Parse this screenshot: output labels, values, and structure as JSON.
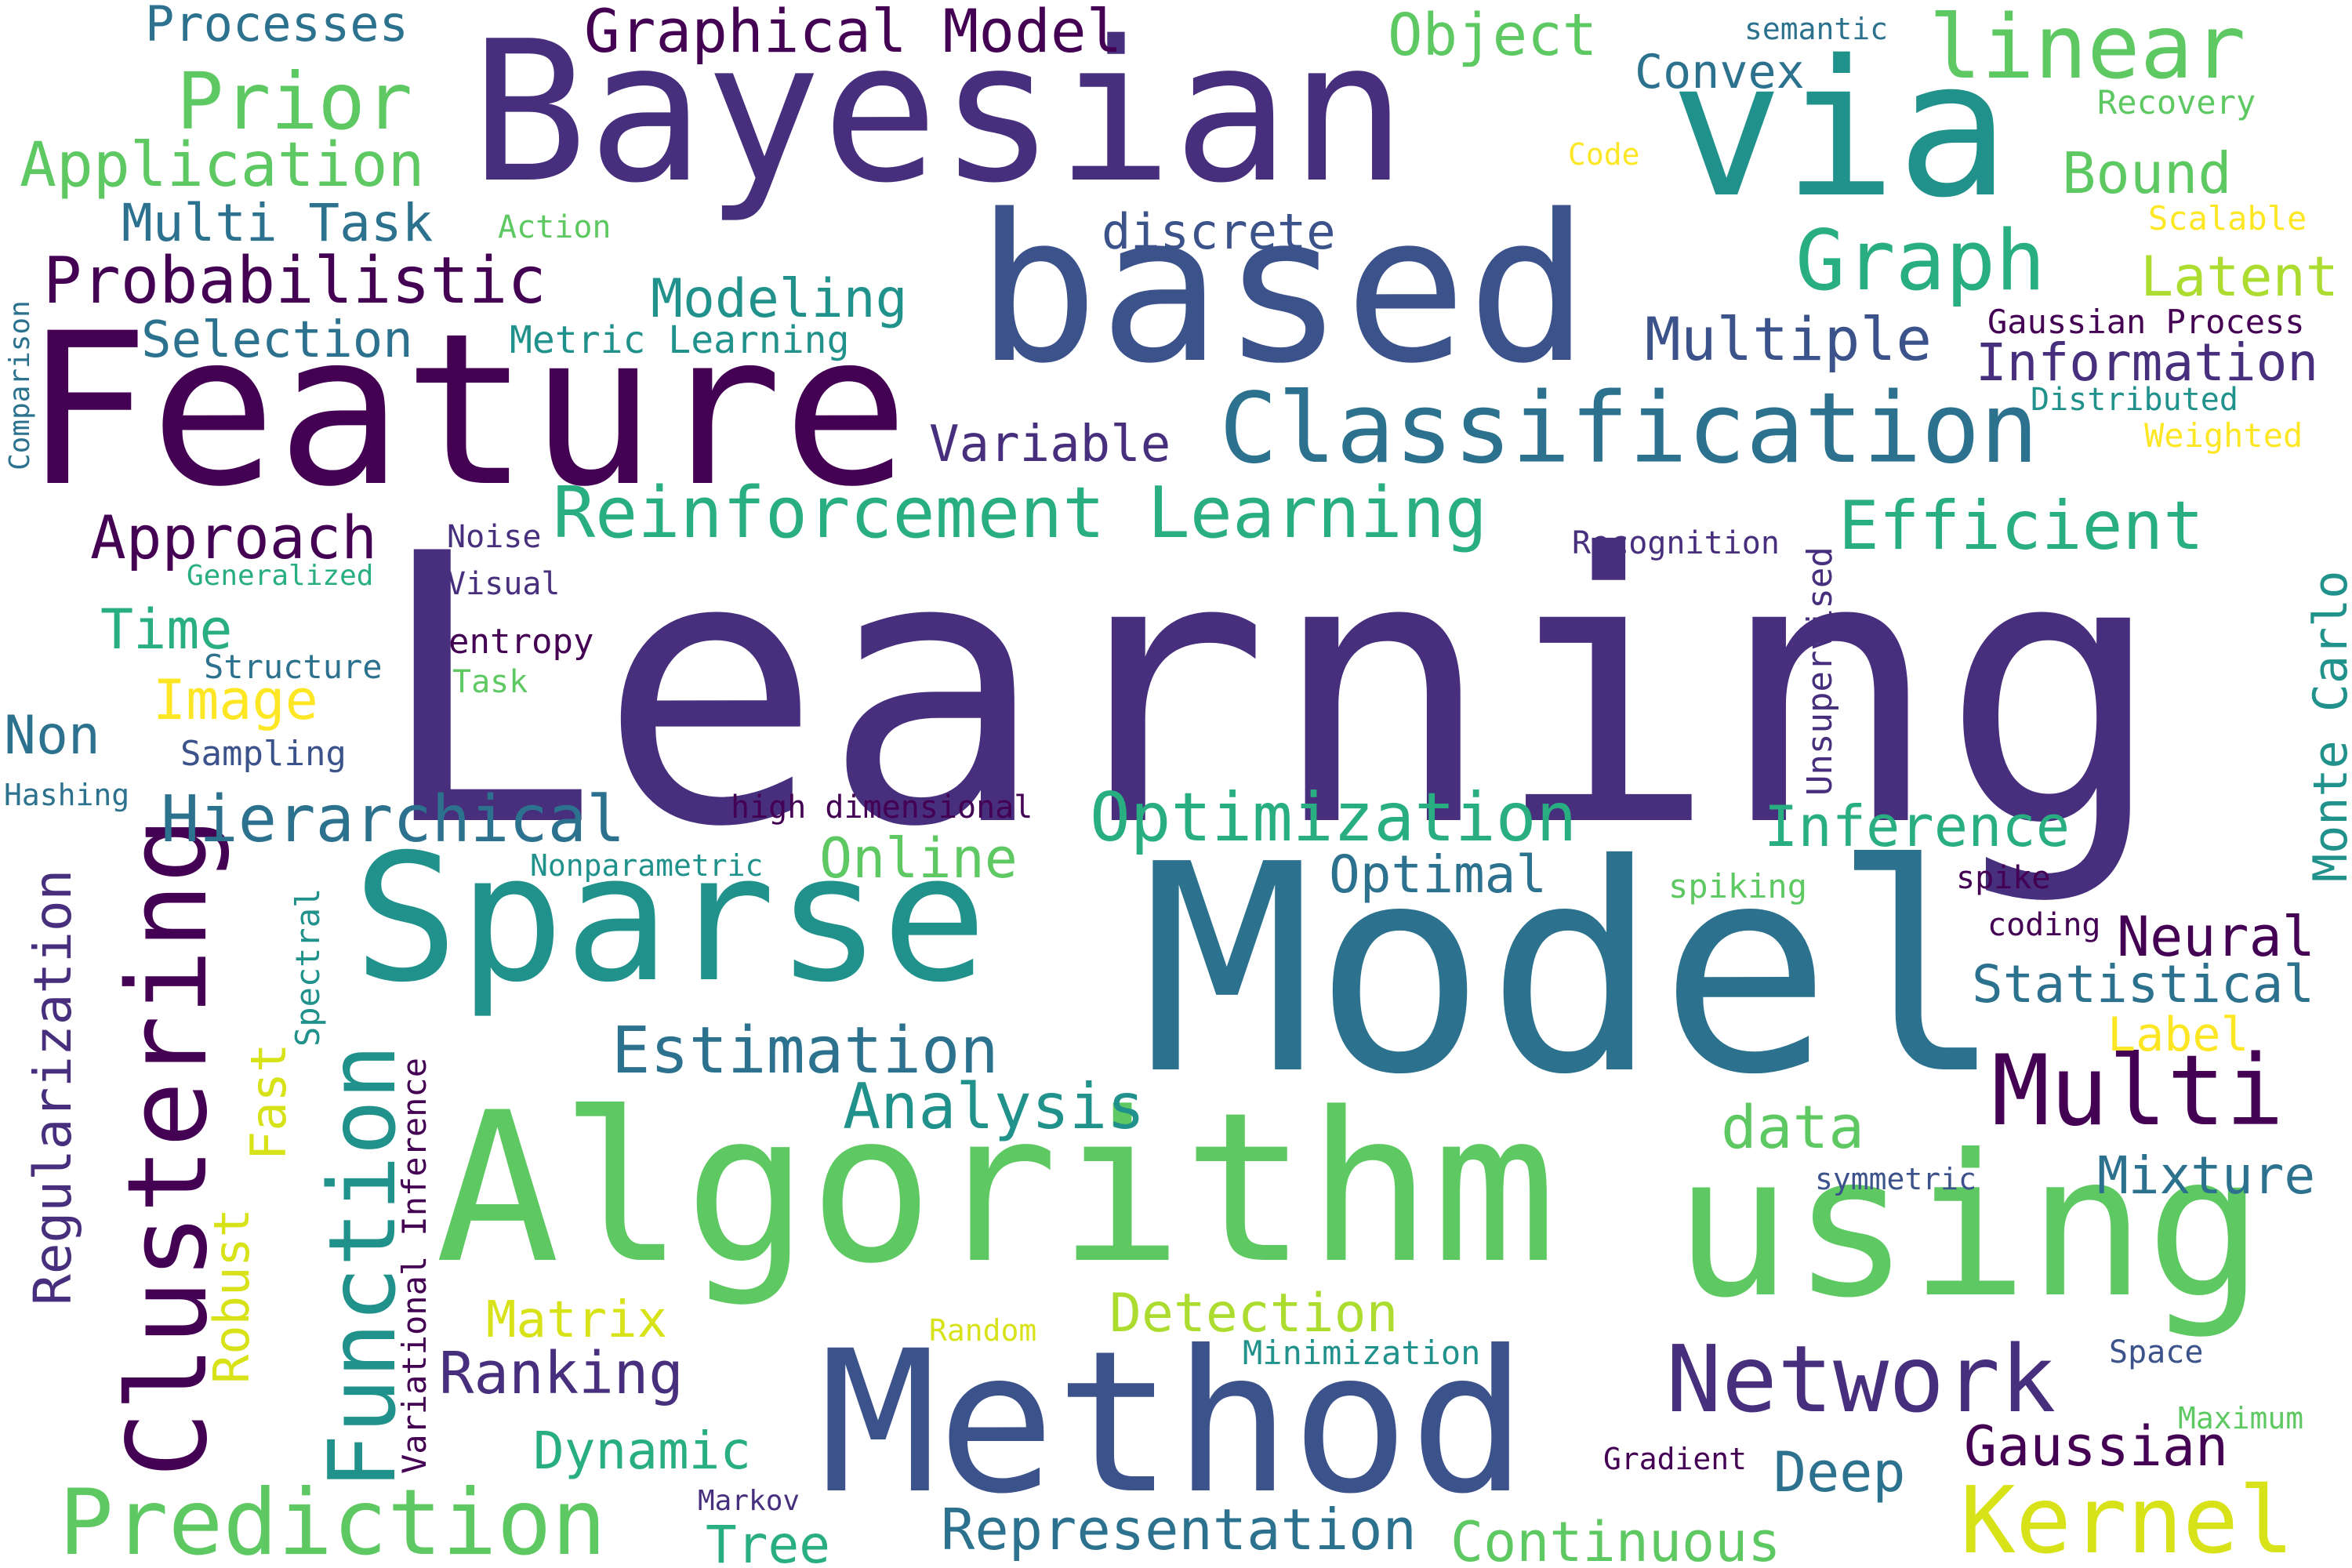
{
  "words": {
    "learning": "Learning",
    "model": "Model",
    "feature": "Feature",
    "bayesian": "Bayesian",
    "based": "based",
    "via": "via",
    "sparse": "Sparse",
    "algorithm": "Algorithm",
    "using": "using",
    "method": "Method",
    "classification": "Classification",
    "clustering": "Clustering",
    "multi": "Multi",
    "function": "Function",
    "network": "Network",
    "kernel": "Kernel",
    "prediction": "Prediction",
    "graph": "Graph",
    "optimization": "Optimization",
    "reinforcement_learning": "Reinforcement Learning",
    "estimation": "Estimation",
    "probabilistic": "Probabilistic",
    "hierarchical": "Hierarchical",
    "efficient": "Efficient",
    "analysis": "Analysis",
    "representation": "Representation",
    "continuous": "Continuous",
    "inference": "Inference",
    "gaussian": "Gaussian",
    "linear": "linear",
    "prior": "Prior",
    "application": "Application",
    "multiple": "Multiple",
    "information": "Information",
    "statistical": "Statistical",
    "monte_carlo": "Monte Carlo",
    "approach": "Approach",
    "data": "data",
    "mixture": "Mixture",
    "neural": "Neural",
    "graphical_model": "Graphical Model",
    "object": "Object",
    "modeling": "Modeling",
    "ranking": "Ranking",
    "regularization": "Regularization",
    "online": "Online",
    "detection": "Detection",
    "dynamic": "Dynamic",
    "tree": "Tree",
    "deep": "Deep",
    "bound": "Bound",
    "latent": "Latent",
    "optimal": "Optimal",
    "variable": "Variable",
    "processes": "Processes",
    "multi_task": "Multi Task",
    "selection": "Selection",
    "time": "Time",
    "non": "Non",
    "image": "Image",
    "convex": "Convex",
    "discrete": "discrete",
    "matrix": "Matrix",
    "label": "Label",
    "robust": "Robust",
    "fast": "Fast",
    "variational_inference": "Variational Inference",
    "spectral": "Spectral",
    "unsupervised": "Unsupervised",
    "metric_learning": "Metric Learning",
    "gaussian_process": "Gaussian Process",
    "distributed": "Distributed",
    "weighted": "Weighted",
    "scalable": "Scalable",
    "recovery": "Recovery",
    "semantic": "semantic",
    "code": "Code",
    "action": "Action",
    "comparison": "Comparison",
    "noise": "Noise",
    "visual": "Visual",
    "generalized": "Generalized",
    "entropy": "entropy",
    "structure": "Structure",
    "task": "Task",
    "sampling": "Sampling",
    "hashing": "Hashing",
    "high_dimensional": "high dimensional",
    "nonparametric": "Nonparametric",
    "recognition": "Recognition",
    "spiking": "spiking",
    "spike": "spike",
    "coding": "coding",
    "symmetric": "symmetric",
    "random": "Random",
    "minimization": "Minimization",
    "space": "Space",
    "maximum": "Maximum",
    "gradient": "Gradient",
    "markov": "Markov"
  },
  "palette": {
    "dark_purple": "#440154",
    "indigo": "#472f7d",
    "blue_purple": "#3b528b",
    "steel_blue": "#2c728e",
    "teal": "#21918c",
    "sea_green": "#28ae80",
    "green": "#5ec962",
    "lime": "#addc30",
    "yellow": "#fde725"
  }
}
